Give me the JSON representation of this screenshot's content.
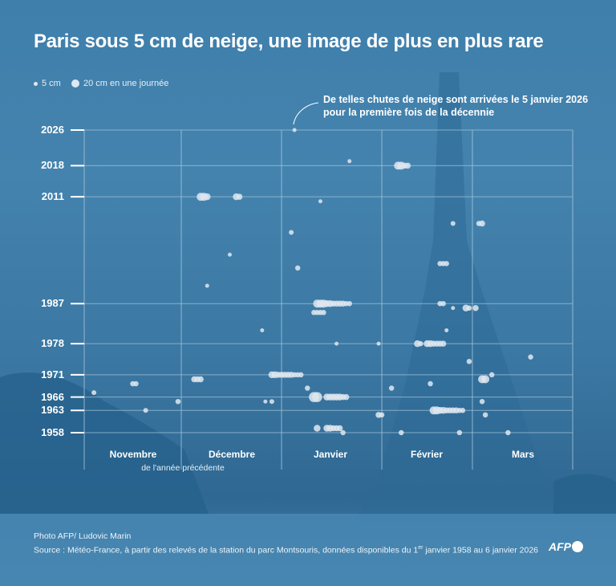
{
  "title": "Paris sous 5 cm de neige, une image de plus en plus rare",
  "legend": {
    "small_label": "5 cm",
    "large_label": "20 cm en une journée"
  },
  "annotation": {
    "line1": "De telles chutes de neige sont arrivées le 5 janvier 2026",
    "line2": "pour la première fois de la décennie"
  },
  "footer": {
    "photo_credit": "Photo AFP/ Ludovic Marin",
    "source_before": "Source : Météo-France, à partir des relevés de la station du parc Montsouris, données disponibles du 1",
    "source_sup": "er",
    "source_after": " janvier 1958 au 6 janvier 2026",
    "logo": "AFP"
  },
  "colors": {
    "background": "#3f7fab",
    "dot": "#dfe8f0",
    "grid": "#a9c6db",
    "text": "#ffffff"
  },
  "chart_data": {
    "type": "scatter",
    "title": "Paris sous 5 cm de neige, une image de plus en plus rare",
    "x_axis": {
      "type": "date (1 novembre – 31 mars)",
      "tick_labels": [
        "Novembre",
        "Décembre",
        "Janvier",
        "Février",
        "Mars"
      ],
      "sublabel": "de l'année précédente"
    },
    "y_axis": {
      "type": "year",
      "range": [
        1958,
        2026
      ],
      "tick_labels": [
        "2026",
        "2018",
        "2011",
        "1987",
        "1978",
        "1971",
        "1966",
        "1963",
        "1958"
      ]
    },
    "size_legend": {
      "small_cm": 5,
      "large_cm": 20
    },
    "grid": true,
    "points": [
      {
        "date": "2026-01-05",
        "cm": 5
      },
      {
        "date": "2019-01-22",
        "cm": 5
      },
      {
        "date": "2018-02-06",
        "cm": 15
      },
      {
        "date": "2018-02-07",
        "cm": 15
      },
      {
        "date": "2018-02-08",
        "cm": 10
      },
      {
        "date": "2018-02-09",
        "cm": 10
      },
      {
        "date": "2010-12-07",
        "cm": 15
      },
      {
        "date": "2010-12-08",
        "cm": 15
      },
      {
        "date": "2010-12-09",
        "cm": 12
      },
      {
        "date": "2010-12-18",
        "cm": 12
      },
      {
        "date": "2010-12-19",
        "cm": 10
      },
      {
        "date": "2010-01-13",
        "cm": 5
      },
      {
        "date": "2005-02-23",
        "cm": 7
      },
      {
        "date": "2005-03-03",
        "cm": 8
      },
      {
        "date": "2005-03-04",
        "cm": 10
      },
      {
        "date": "2003-01-04",
        "cm": 7
      },
      {
        "date": "1997-12-16",
        "cm": 5
      },
      {
        "date": "1996-02-19",
        "cm": 8
      },
      {
        "date": "1996-02-20",
        "cm": 8
      },
      {
        "date": "1996-02-21",
        "cm": 8
      },
      {
        "date": "1995-01-06",
        "cm": 8
      },
      {
        "date": "1990-12-09",
        "cm": 5
      },
      {
        "date": "1987-01-12",
        "cm": 15
      },
      {
        "date": "1987-01-13",
        "cm": 15
      },
      {
        "date": "1987-01-14",
        "cm": 15
      },
      {
        "date": "1987-01-15",
        "cm": 12
      },
      {
        "date": "1987-01-16",
        "cm": 12
      },
      {
        "date": "1987-01-17",
        "cm": 10
      },
      {
        "date": "1987-01-18",
        "cm": 10
      },
      {
        "date": "1987-01-19",
        "cm": 10
      },
      {
        "date": "1987-01-20",
        "cm": 10
      },
      {
        "date": "1987-01-21",
        "cm": 8
      },
      {
        "date": "1987-01-22",
        "cm": 8
      },
      {
        "date": "1987-02-19",
        "cm": 8
      },
      {
        "date": "1987-02-20",
        "cm": 8
      },
      {
        "date": "1986-02-23",
        "cm": 5
      },
      {
        "date": "1986-02-27",
        "cm": 12
      },
      {
        "date": "1986-02-28",
        "cm": 8
      },
      {
        "date": "1986-03-02",
        "cm": 10
      },
      {
        "date": "1985-01-11",
        "cm": 8
      },
      {
        "date": "1985-01-12",
        "cm": 8
      },
      {
        "date": "1985-01-13",
        "cm": 8
      },
      {
        "date": "1985-01-14",
        "cm": 8
      },
      {
        "date": "1980-12-26",
        "cm": 5
      },
      {
        "date": "1981-02-21",
        "cm": 5
      },
      {
        "date": "1978-01-18",
        "cm": 5
      },
      {
        "date": "1978-01-31",
        "cm": 5
      },
      {
        "date": "1978-02-12",
        "cm": 12
      },
      {
        "date": "1978-02-13",
        "cm": 8
      },
      {
        "date": "1978-02-15",
        "cm": 12
      },
      {
        "date": "1978-02-16",
        "cm": 12
      },
      {
        "date": "1978-02-17",
        "cm": 10
      },
      {
        "date": "1978-02-18",
        "cm": 10
      },
      {
        "date": "1978-02-19",
        "cm": 10
      },
      {
        "date": "1978-02-20",
        "cm": 10
      },
      {
        "date": "1975-03-19",
        "cm": 8
      },
      {
        "date": "1974-02-28",
        "cm": 8
      },
      {
        "date": "1970-12-29",
        "cm": 12
      },
      {
        "date": "1970-12-30",
        "cm": 12
      },
      {
        "date": "1970-12-31",
        "cm": 10
      },
      {
        "date": "1971-01-01",
        "cm": 10
      },
      {
        "date": "1971-01-02",
        "cm": 10
      },
      {
        "date": "1971-01-03",
        "cm": 10
      },
      {
        "date": "1971-01-04",
        "cm": 10
      },
      {
        "date": "1971-01-05",
        "cm": 8
      },
      {
        "date": "1971-01-06",
        "cm": 8
      },
      {
        "date": "1971-01-07",
        "cm": 8
      },
      {
        "date": "1971-03-07",
        "cm": 8
      },
      {
        "date": "1969-12-05",
        "cm": 10
      },
      {
        "date": "1969-12-06",
        "cm": 10
      },
      {
        "date": "1969-12-07",
        "cm": 10
      },
      {
        "date": "1970-03-04",
        "cm": 15
      },
      {
        "date": "1970-03-05",
        "cm": 15
      },
      {
        "date": "1968-11-16",
        "cm": 8
      },
      {
        "date": "1968-11-17",
        "cm": 8
      },
      {
        "date": "1969-02-16",
        "cm": 8
      },
      {
        "date": "1968-01-09",
        "cm": 8
      },
      {
        "date": "1968-02-04",
        "cm": 8
      },
      {
        "date": "1966-11-04",
        "cm": 7
      },
      {
        "date": "1966-01-11",
        "cm": 20
      },
      {
        "date": "1966-01-12",
        "cm": 20
      },
      {
        "date": "1966-01-15",
        "cm": 12
      },
      {
        "date": "1966-01-16",
        "cm": 12
      },
      {
        "date": "1966-01-17",
        "cm": 12
      },
      {
        "date": "1966-01-18",
        "cm": 12
      },
      {
        "date": "1966-01-19",
        "cm": 12
      },
      {
        "date": "1966-01-20",
        "cm": 10
      },
      {
        "date": "1966-01-21",
        "cm": 10
      },
      {
        "date": "1964-11-30",
        "cm": 8
      },
      {
        "date": "1964-12-27",
        "cm": 5
      },
      {
        "date": "1964-12-29",
        "cm": 7
      },
      {
        "date": "1965-03-04",
        "cm": 8
      },
      {
        "date": "1962-11-20",
        "cm": 7
      },
      {
        "date": "1963-02-17",
        "cm": 15
      },
      {
        "date": "1963-02-18",
        "cm": 15
      },
      {
        "date": "1963-02-19",
        "cm": 12
      },
      {
        "date": "1963-02-20",
        "cm": 12
      },
      {
        "date": "1963-02-21",
        "cm": 10
      },
      {
        "date": "1963-02-22",
        "cm": 10
      },
      {
        "date": "1963-02-23",
        "cm": 10
      },
      {
        "date": "1963-02-24",
        "cm": 10
      },
      {
        "date": "1963-02-25",
        "cm": 8
      },
      {
        "date": "1963-02-26",
        "cm": 8
      },
      {
        "date": "1962-01-31",
        "cm": 10
      },
      {
        "date": "1962-02-01",
        "cm": 8
      },
      {
        "date": "1962-03-05",
        "cm": 8
      },
      {
        "date": "1959-01-12",
        "cm": 12
      },
      {
        "date": "1959-01-15",
        "cm": 12
      },
      {
        "date": "1959-01-16",
        "cm": 12
      },
      {
        "date": "1959-01-17",
        "cm": 10
      },
      {
        "date": "1959-01-18",
        "cm": 10
      },
      {
        "date": "1959-01-19",
        "cm": 10
      },
      {
        "date": "1958-01-20",
        "cm": 8
      },
      {
        "date": "1958-02-07",
        "cm": 8
      },
      {
        "date": "1958-02-25",
        "cm": 8
      },
      {
        "date": "1958-03-12",
        "cm": 8
      }
    ]
  }
}
